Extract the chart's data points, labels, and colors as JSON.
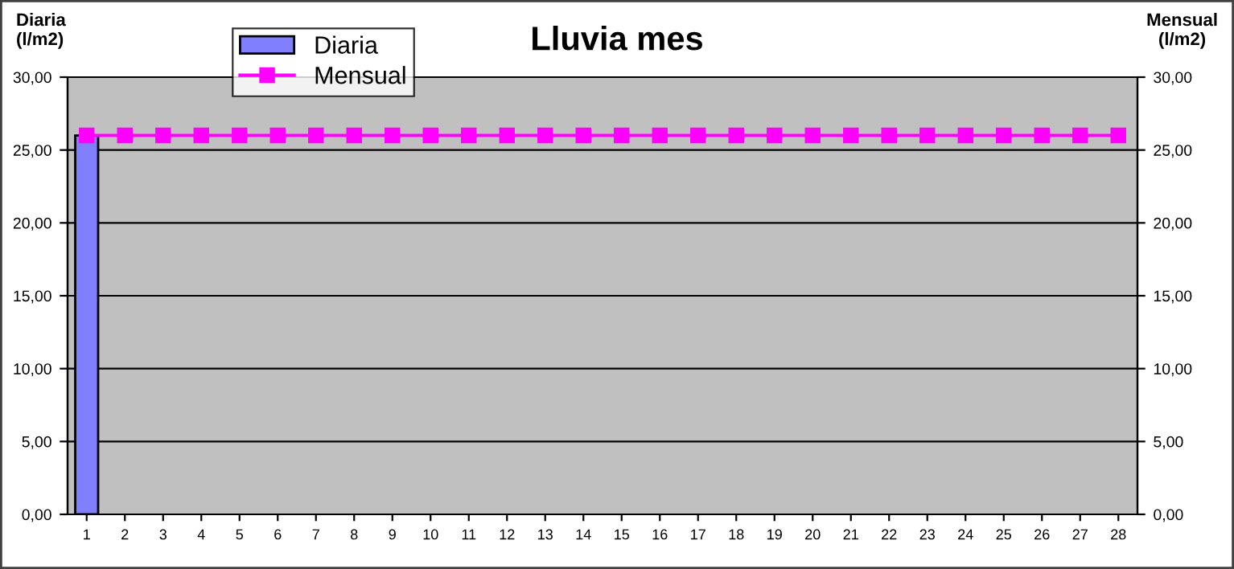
{
  "chart_data": {
    "type": "bar",
    "title": "Lluvia mes",
    "ylabel": "Diaria\n(l/m2)",
    "y2label": "Mensual\n(l/m2)",
    "categories": [
      "1",
      "2",
      "3",
      "4",
      "5",
      "6",
      "7",
      "8",
      "9",
      "10",
      "11",
      "12",
      "13",
      "14",
      "15",
      "16",
      "17",
      "18",
      "19",
      "20",
      "21",
      "22",
      "23",
      "24",
      "25",
      "26",
      "27",
      "28"
    ],
    "series": [
      {
        "name": "Diaria",
        "color": "#8080ff",
        "values": [
          26.0,
          null,
          null,
          null,
          null,
          null,
          null,
          null,
          null,
          null,
          null,
          null,
          null,
          null,
          null,
          null,
          null,
          null,
          null,
          null,
          null,
          null,
          null,
          null,
          null,
          null,
          null,
          null
        ]
      },
      {
        "name": "Mensual",
        "type": "line",
        "color": "#ff00ff",
        "marker": "square",
        "values": [
          26.0,
          26.0,
          26.0,
          26.0,
          26.0,
          26.0,
          26.0,
          26.0,
          26.0,
          26.0,
          26.0,
          26.0,
          26.0,
          26.0,
          26.0,
          26.0,
          26.0,
          26.0,
          26.0,
          26.0,
          26.0,
          26.0,
          26.0,
          26.0,
          26.0,
          26.0,
          26.0,
          26.0
        ]
      }
    ],
    "ylim": [
      0,
      30
    ],
    "yticks": [
      {
        "value": 0,
        "label": "0,00"
      },
      {
        "value": 5,
        "label": "5,00"
      },
      {
        "value": 10,
        "label": "10,00"
      },
      {
        "value": 15,
        "label": "15,00"
      },
      {
        "value": 20,
        "label": "20,00"
      },
      {
        "value": 25,
        "label": "25,00"
      },
      {
        "value": 30,
        "label": "30,00"
      }
    ],
    "y2lim": [
      0,
      30
    ],
    "y2ticks": [
      {
        "value": 0,
        "label": "0,00"
      },
      {
        "value": 5,
        "label": "5,00"
      },
      {
        "value": 10,
        "label": "10,00"
      },
      {
        "value": 15,
        "label": "15,00"
      },
      {
        "value": 20,
        "label": "20,00"
      },
      {
        "value": 25,
        "label": "25,00"
      },
      {
        "value": 30,
        "label": "30,00"
      }
    ],
    "grid": "y",
    "legend": "top left"
  }
}
